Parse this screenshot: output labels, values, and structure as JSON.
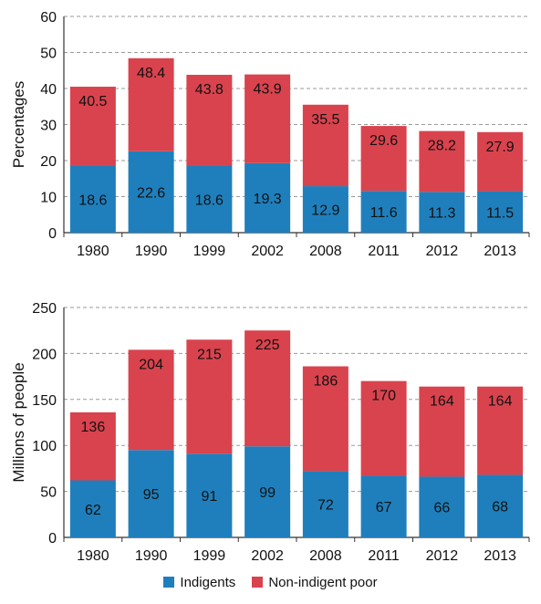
{
  "colors": {
    "indigents": "#1f7fbc",
    "non_indigent": "#d9434e",
    "grid": "#9a9a9a",
    "axis": "#333333"
  },
  "legend": {
    "indigents": "Indigents",
    "non_indigent": "Non-indigent poor"
  },
  "chart_data": [
    {
      "type": "bar",
      "stacked": true,
      "title": "",
      "xlabel": "",
      "ylabel": "Percentages",
      "ylim": [
        0,
        60
      ],
      "yticks": [
        0,
        10,
        20,
        30,
        40,
        50,
        60
      ],
      "grid": true,
      "categories": [
        "1980",
        "1990",
        "1999",
        "2002",
        "2008",
        "2011",
        "2012",
        "2013"
      ],
      "series": [
        {
          "name": "Indigents",
          "values": [
            18.6,
            22.6,
            18.6,
            19.3,
            12.9,
            11.6,
            11.3,
            11.5
          ]
        },
        {
          "name": "Non-indigent poor",
          "values": [
            21.9,
            25.8,
            25.2,
            24.6,
            22.6,
            18.0,
            16.9,
            16.4
          ]
        }
      ],
      "totals": [
        40.5,
        48.4,
        43.8,
        43.9,
        35.5,
        29.6,
        28.2,
        27.9
      ]
    },
    {
      "type": "bar",
      "stacked": true,
      "title": "",
      "xlabel": "",
      "ylabel": "Millions of people",
      "ylim": [
        0,
        250
      ],
      "yticks": [
        0,
        50,
        100,
        150,
        200,
        250
      ],
      "grid": true,
      "categories": [
        "1980",
        "1990",
        "1999",
        "2002",
        "2008",
        "2011",
        "2012",
        "2013"
      ],
      "series": [
        {
          "name": "Indigents",
          "values": [
            62,
            95,
            91,
            99,
            72,
            67,
            66,
            68
          ]
        },
        {
          "name": "Non-indigent poor",
          "values": [
            74,
            109,
            124,
            126,
            114,
            103,
            98,
            96
          ]
        }
      ],
      "totals": [
        136,
        204,
        215,
        225,
        186,
        170,
        164,
        164
      ]
    }
  ]
}
